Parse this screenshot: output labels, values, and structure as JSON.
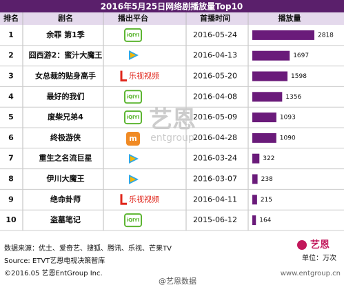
{
  "header": {
    "title": "2016年5月25日网络剧播放量Top10"
  },
  "table": {
    "columns": [
      "排名",
      "剧名",
      "播出平台",
      "首播时间",
      "播放量"
    ],
    "rows": [
      {
        "rank": "1",
        "name": "余罪 第1季",
        "platform": "iQIYI",
        "date": "2016-05-24",
        "plays": 2818
      },
      {
        "rank": "2",
        "name": "囧西游2：蜜汁大魔王",
        "platform": null,
        "date": "2016-04-13",
        "plays": 1697
      },
      {
        "rank": "3",
        "name": "女总裁的贴身高手",
        "platform": "乐视视频",
        "date": "2016-05-20",
        "plays": 1598
      },
      {
        "rank": "4",
        "name": "最好的我们",
        "platform": "iQIYI",
        "date": "2016-04-08",
        "plays": 1356
      },
      {
        "rank": "5",
        "name": "废柴兄弟4",
        "platform": "iQIYI",
        "date": "2016-05-09",
        "plays": 1093
      },
      {
        "rank": "6",
        "name": "终极游侠",
        "platform": null,
        "date": "2016-04-28",
        "plays": 1090
      },
      {
        "rank": "7",
        "name": "重生之名流巨星",
        "platform": null,
        "date": "2016-03-24",
        "plays": 322
      },
      {
        "rank": "8",
        "name": "伊川大魔王",
        "platform": null,
        "date": "2016-03-07",
        "plays": 238
      },
      {
        "rank": "9",
        "name": "绝命卦师",
        "platform": "乐视视频",
        "date": "2016-04-11",
        "plays": 215
      },
      {
        "rank": "10",
        "name": "盗墓笔记",
        "platform": "iQIYI",
        "date": "2015-06-12",
        "plays": 164
      }
    ],
    "bar_color": "#6a1b7a"
  },
  "footer": {
    "source_cn": "数据来源：优土、爱奇艺、搜狐、腾讯、乐视、芒果TV",
    "source_en": "Source: ETVT艺恩电视决策智库",
    "copyright": "©2016.05 艺恩EntGroup Inc.",
    "unit": "单位：万次",
    "logo": "艺恩",
    "logo_sub": "entgroup",
    "watermark": "@艺恩数据",
    "url": "www.entgroup.cn"
  }
}
